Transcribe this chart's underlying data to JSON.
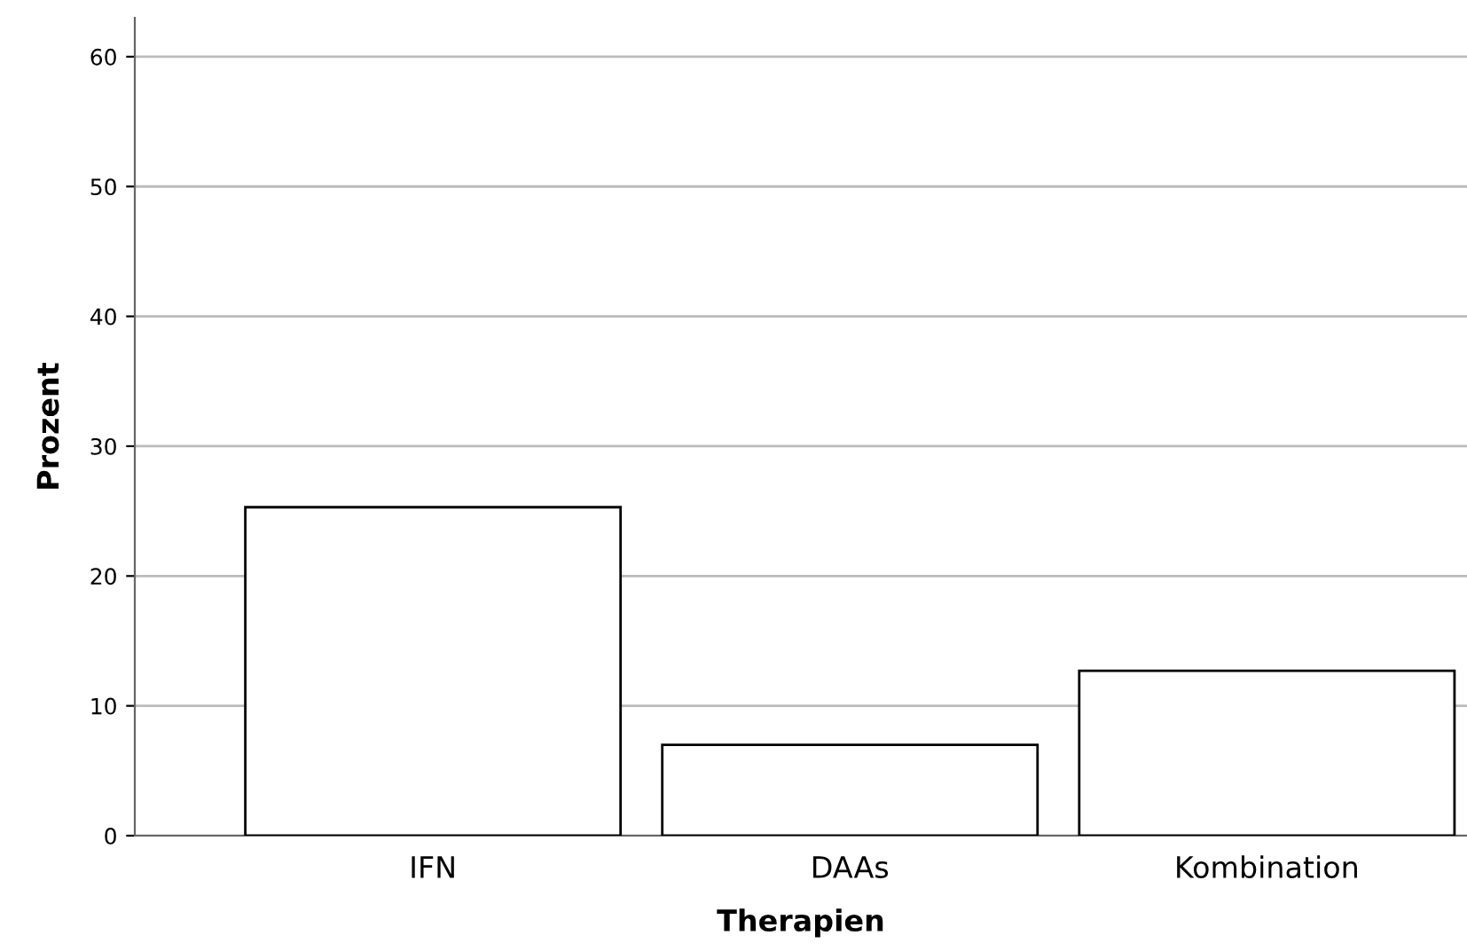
{
  "chart_data": {
    "type": "bar",
    "xlabel": "Therapien",
    "ylabel": "Prozent",
    "categories": [
      "IFN",
      "DAAs",
      "Kombination"
    ],
    "values": [
      25.3,
      7.0,
      12.7
    ],
    "colors": [
      "#ffffff",
      "#ffffff",
      "#ffffff"
    ],
    "ylim": [
      0,
      63
    ],
    "yticks": [
      0,
      10,
      20,
      30,
      40,
      50,
      60
    ],
    "grid": "y",
    "legend": false
  }
}
